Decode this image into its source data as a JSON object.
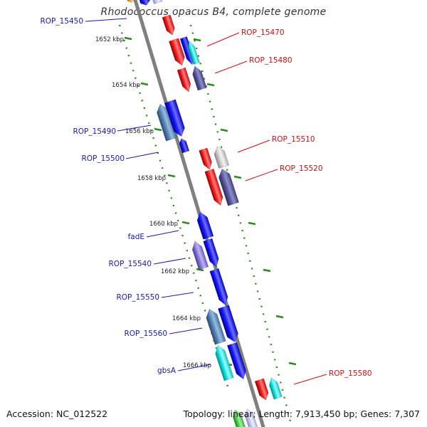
{
  "title": "Rhodococcus opacus B4, complete genome",
  "footer": {
    "accession": "Accession: NC_012522",
    "topology": "Topology: linear; Length: 7,913,450 bp; Genes: 7,307"
  },
  "colors": {
    "backbone": "#808080",
    "tick": "#2a8a1a",
    "left_label": "#1a1aaa",
    "right_label": "#cc1111"
  },
  "kbp_labels": [
    "1652 kbp",
    "1654 kbp",
    "1656 kbp",
    "1658 kbp",
    "1660 kbp",
    "1662 kbp",
    "1664 kbp",
    "1666 kbp"
  ],
  "gene_labels": [
    {
      "text": "ROP_15450",
      "side": "left"
    },
    {
      "text": "ROP_15470",
      "side": "right"
    },
    {
      "text": "ROP_15480",
      "side": "right"
    },
    {
      "text": "ROP_15490",
      "side": "left"
    },
    {
      "text": "ROP_15500",
      "side": "left"
    },
    {
      "text": "ROP_15510",
      "side": "right"
    },
    {
      "text": "ROP_15520",
      "side": "right"
    },
    {
      "text": "fadE",
      "side": "left"
    },
    {
      "text": "ROP_15540",
      "side": "left"
    },
    {
      "text": "ROP_15550",
      "side": "left"
    },
    {
      "text": "ROP_15560",
      "side": "left"
    },
    {
      "text": "gbsA",
      "side": "left"
    },
    {
      "text": "ROP_15580",
      "side": "right"
    }
  ]
}
